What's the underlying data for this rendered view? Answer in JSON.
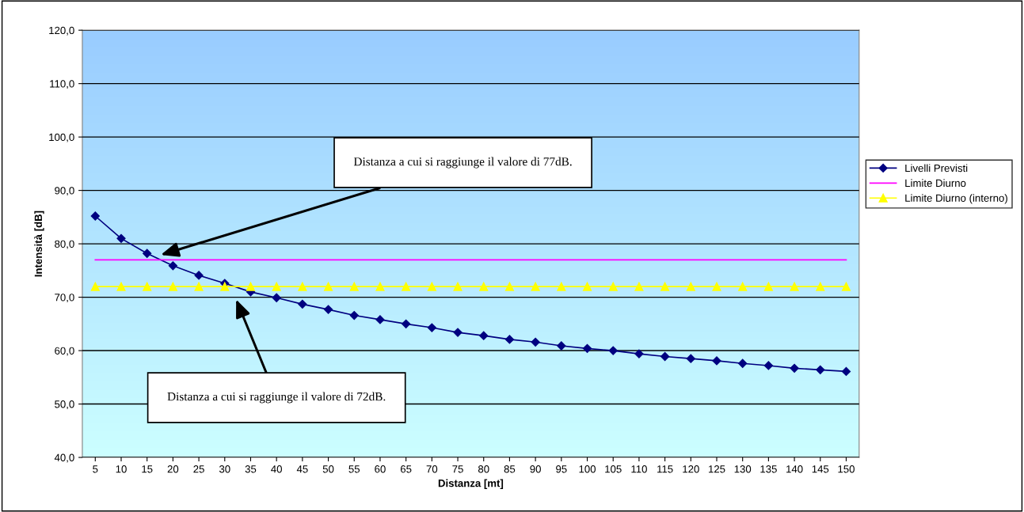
{
  "chart_data": {
    "type": "line",
    "xlabel": "Distanza [mt]",
    "ylabel": "Intensità [dB]",
    "categories": [
      "5",
      "10",
      "15",
      "20",
      "25",
      "30",
      "35",
      "40",
      "45",
      "50",
      "55",
      "60",
      "65",
      "70",
      "75",
      "80",
      "85",
      "90",
      "95",
      "100",
      "105",
      "110",
      "115",
      "120",
      "125",
      "130",
      "135",
      "140",
      "145",
      "150"
    ],
    "series": [
      {
        "name": "Livelli Previsti",
        "color": "#000080",
        "marker": "diamond",
        "values": [
          85.2,
          81.0,
          78.2,
          75.9,
          74.1,
          72.6,
          71.0,
          69.9,
          68.7,
          67.7,
          66.6,
          65.8,
          65.0,
          64.3,
          63.4,
          62.8,
          62.1,
          61.6,
          60.9,
          60.4,
          60.0,
          59.4,
          58.9,
          58.5,
          58.1,
          57.6,
          57.2,
          56.7,
          56.4,
          56.1
        ]
      },
      {
        "name": "Limite Diurno",
        "color": "#ff00ff",
        "marker": "none",
        "values": [
          77,
          77,
          77,
          77,
          77,
          77,
          77,
          77,
          77,
          77,
          77,
          77,
          77,
          77,
          77,
          77,
          77,
          77,
          77,
          77,
          77,
          77,
          77,
          77,
          77,
          77,
          77,
          77,
          77,
          77
        ]
      },
      {
        "name": "Limite Diurno (interno)",
        "color": "#ffff00",
        "marker": "triangle",
        "values": [
          72,
          72,
          72,
          72,
          72,
          72,
          72,
          72,
          72,
          72,
          72,
          72,
          72,
          72,
          72,
          72,
          72,
          72,
          72,
          72,
          72,
          72,
          72,
          72,
          72,
          72,
          72,
          72,
          72,
          72
        ]
      }
    ],
    "ylim": [
      40,
      120
    ],
    "yticks": [
      {
        "value": 40,
        "label": "40,0"
      },
      {
        "value": 50,
        "label": "50,0"
      },
      {
        "value": 60,
        "label": "60,0"
      },
      {
        "value": 70,
        "label": "70,0"
      },
      {
        "value": 80,
        "label": "80,0"
      },
      {
        "value": 90,
        "label": "90,0"
      },
      {
        "value": 100,
        "label": "100,0"
      },
      {
        "value": 110,
        "label": "110,0"
      },
      {
        "value": 120,
        "label": "120,0"
      }
    ],
    "grid": "y",
    "legend": "right",
    "annotations": [
      "Distanza a cui si raggiunge il valore di 77dB.",
      "Distanza a cui si raggiunge il valore di 72dB."
    ]
  }
}
